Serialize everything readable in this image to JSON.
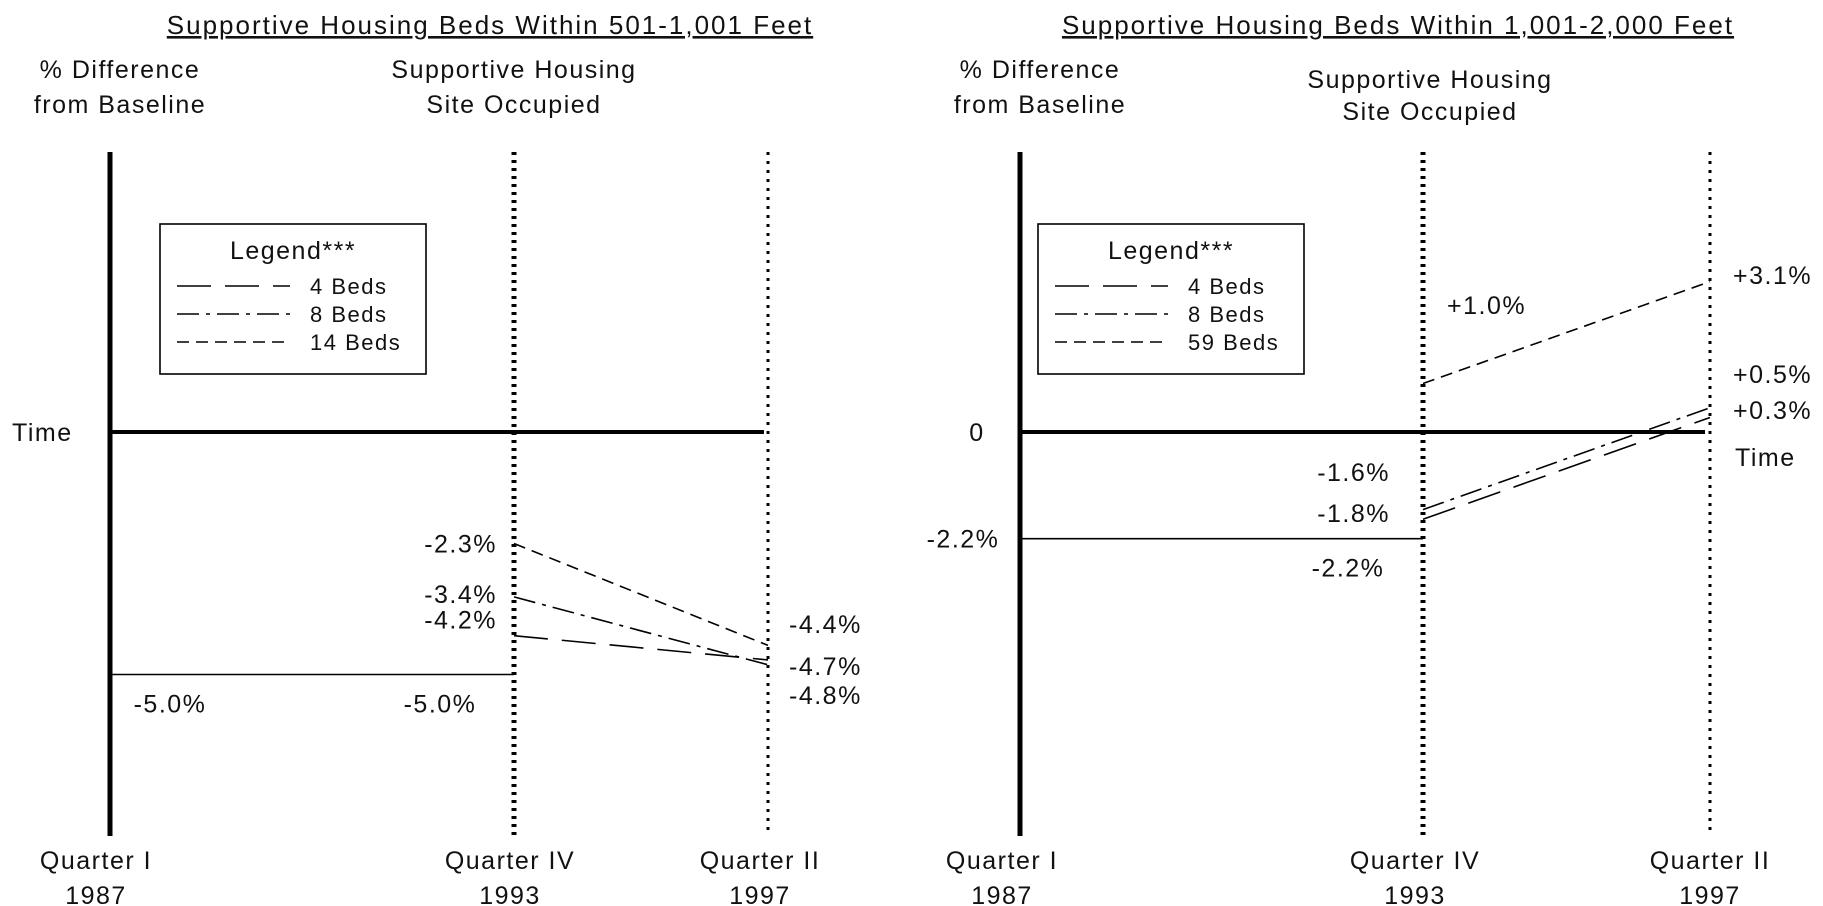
{
  "chart_data": [
    {
      "type": "line",
      "title": "Supportive Housing Beds Within 501-1,001 Feet",
      "ylabel": "% Difference from Baseline",
      "ylabel_lines": [
        "% Difference",
        "from Baseline"
      ],
      "event_label": "Supportive Housing Site Occupied",
      "event_label_lines": [
        "Supportive Housing",
        "Site Occupied"
      ],
      "x_axis_label": "Time",
      "y_zero_label": "",
      "x_ticks": [
        {
          "line1": "Quarter I",
          "line2": "1987"
        },
        {
          "line1": "Quarter IV",
          "line2": "1993"
        },
        {
          "line1": "Quarter II",
          "line2": "1997"
        }
      ],
      "legend_title": "Legend***",
      "baseline": {
        "start": -5.0,
        "end": -5.0,
        "start_label": "-5.0%",
        "end_label": "-5.0%"
      },
      "series": [
        {
          "name": "4 Beds",
          "dash": "long",
          "values": [
            -4.2,
            -4.7
          ],
          "labels": [
            "-4.2%",
            "-4.7%"
          ]
        },
        {
          "name": "8 Beds",
          "dash": "dashdot",
          "values": [
            -3.4,
            -4.8
          ],
          "labels": [
            "-3.4%",
            "-4.8%"
          ]
        },
        {
          "name": "14 Beds",
          "dash": "short",
          "values": [
            -2.3,
            -4.4
          ],
          "labels": [
            "-2.3%",
            "-4.4%"
          ]
        }
      ]
    },
    {
      "type": "line",
      "title": "Supportive Housing Beds Within 1,001-2,000 Feet",
      "ylabel": "% Difference from Baseline",
      "ylabel_lines": [
        "% Difference",
        "from Baseline"
      ],
      "event_label": "Supportive Housing Site Occupied",
      "event_label_lines": [
        "Supportive Housing",
        "Site Occupied"
      ],
      "x_axis_label": "Time",
      "y_zero_label": "0",
      "x_ticks": [
        {
          "line1": "Quarter I",
          "line2": "1987"
        },
        {
          "line1": "Quarter IV",
          "line2": "1993"
        },
        {
          "line1": "Quarter II",
          "line2": "1997"
        }
      ],
      "legend_title": "Legend***",
      "baseline": {
        "start": -2.2,
        "end": -2.2,
        "start_label": "-2.2%",
        "end_label": "-2.2%"
      },
      "series": [
        {
          "name": "4 Beds",
          "dash": "long",
          "values": [
            -1.8,
            0.3
          ],
          "labels": [
            "-1.8%",
            "+0.3%"
          ]
        },
        {
          "name": "8 Beds",
          "dash": "dashdot",
          "values": [
            -1.6,
            0.5
          ],
          "labels": [
            "-1.6%",
            "+0.5%"
          ]
        },
        {
          "name": "59 Beds",
          "dash": "short",
          "values": [
            1.0,
            3.1
          ],
          "labels": [
            "+1.0%",
            "+3.1%"
          ]
        }
      ]
    }
  ]
}
